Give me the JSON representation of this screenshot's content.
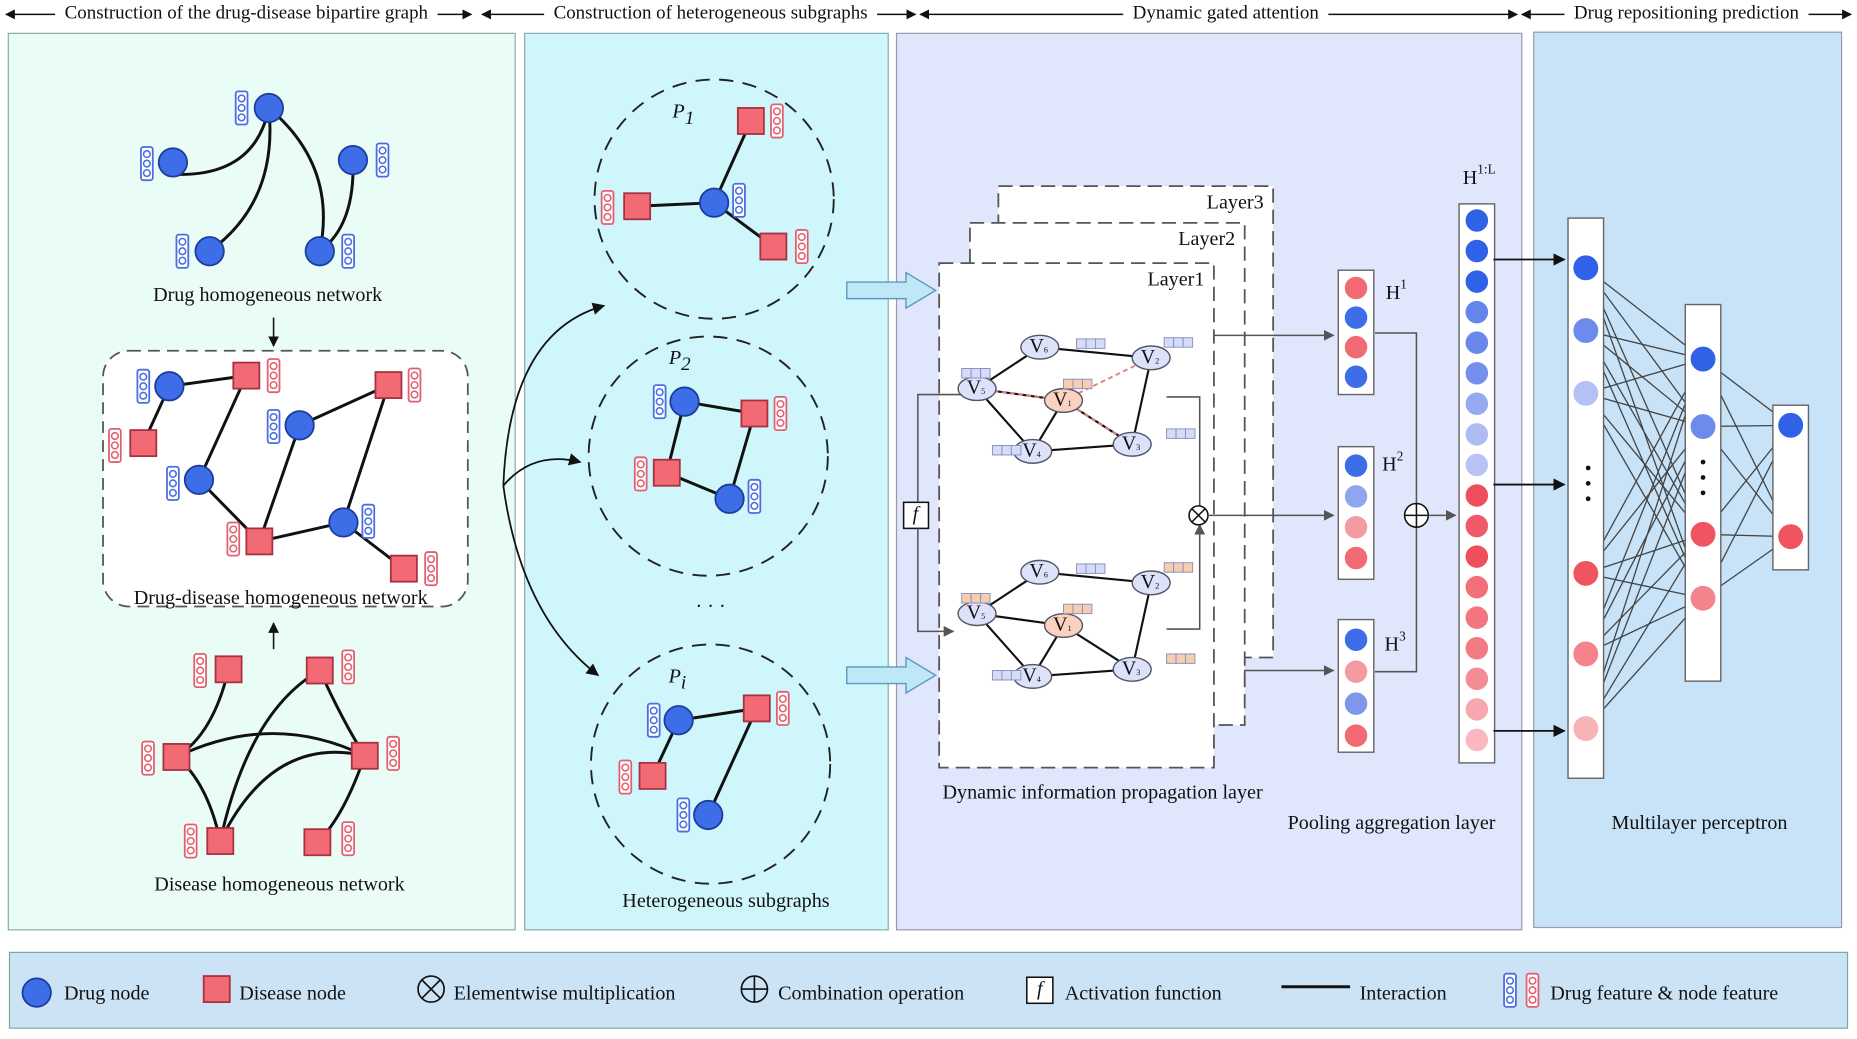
{
  "sections": [
    {
      "title": "Construction of the drug-disease bipartire graph"
    },
    {
      "title": "Construction of heterogeneous subgraphs"
    },
    {
      "title": "Dynamic gated attention"
    },
    {
      "title": "Drug repositioning prediction"
    }
  ],
  "panel1": {
    "drug_network": "Drug homogeneous network",
    "mixed_network": "Drug-disease homogeneous network",
    "disease_network": "Disease homogeneous network"
  },
  "panel2": {
    "subgraphs": [
      {
        "base": "P",
        "sub": "1"
      },
      {
        "base": "P",
        "sub": "2"
      },
      {
        "base": "P",
        "sub": "i"
      }
    ],
    "ellipsis": "· · ·",
    "label": "Heterogeneous subgraphs"
  },
  "panel3": {
    "layers": [
      "Layer1",
      "Layer2",
      "Layer3"
    ],
    "nodes": [
      {
        "base": "V",
        "sub": "1"
      },
      {
        "base": "V",
        "sub": "2"
      },
      {
        "base": "V",
        "sub": "3"
      },
      {
        "base": "V",
        "sub": "4"
      },
      {
        "base": "V",
        "sub": "5"
      },
      {
        "base": "V",
        "sub": "6"
      }
    ],
    "activation": "f",
    "label": "Dynamic information propagation layer"
  },
  "panel4": {
    "outputs": [
      {
        "base": "H",
        "sup": "1"
      },
      {
        "base": "H",
        "sup": "2"
      },
      {
        "base": "H",
        "sup": "3"
      }
    ],
    "concat": {
      "base": "H",
      "sup": "1:L"
    },
    "label": "Pooling aggregation layer"
  },
  "panel5": {
    "label": "Multilayer perceptron"
  },
  "legend": [
    "Drug node",
    "Disease node",
    "Elementwise multiplication",
    "Combination operation",
    "Activation function",
    "Interaction",
    "Drug feature & node feature"
  ]
}
